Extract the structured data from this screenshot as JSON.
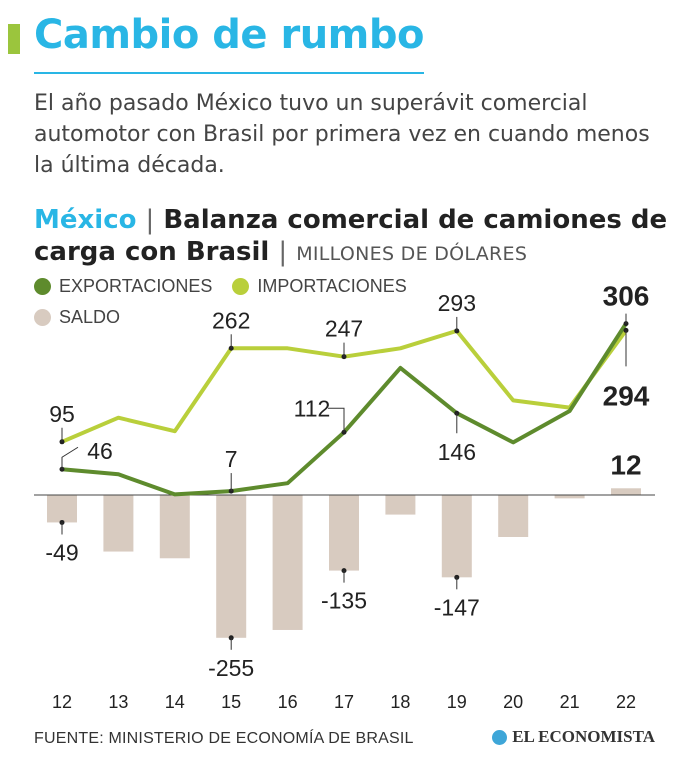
{
  "header": {
    "title": "Cambio de rumbo",
    "subtitle": "El año pasado México tuvo un superávit comercial automotor con Brasil por primera vez en cuando menos la última década."
  },
  "chart_header": {
    "country": "México",
    "separator": "|",
    "title": "Balanza comercial de camiones de carga con Brasil",
    "unit": "MILLONES DE DÓLARES"
  },
  "colors": {
    "exportaciones": "#5e8b2d",
    "importaciones": "#b9cf3b",
    "saldo": "#d8cbc0",
    "accent": "#29b6e5"
  },
  "chart_data": {
    "type": "line",
    "categories": [
      "12",
      "13",
      "14",
      "15",
      "16",
      "17",
      "18",
      "19",
      "20",
      "21",
      "22"
    ],
    "series": [
      {
        "name": "EXPORTACIONES",
        "type": "line",
        "values": [
          46,
          37,
          1,
          7,
          21,
          112,
          227,
          146,
          94,
          150,
          306
        ]
      },
      {
        "name": "IMPORTACIONES",
        "type": "line",
        "values": [
          95,
          138,
          114,
          262,
          262,
          247,
          262,
          293,
          169,
          156,
          294
        ]
      },
      {
        "name": "SALDO",
        "type": "bar",
        "values": [
          -49,
          -101,
          -113,
          -255,
          -241,
          -135,
          -35,
          -147,
          -75,
          -6,
          12
        ]
      }
    ],
    "labels": {
      "exportaciones": [
        {
          "i": 0,
          "text": "46"
        },
        {
          "i": 3,
          "text": "7"
        },
        {
          "i": 5,
          "text": "112"
        },
        {
          "i": 7,
          "text": "146"
        },
        {
          "i": 10,
          "text": "306"
        }
      ],
      "importaciones": [
        {
          "i": 0,
          "text": "95"
        },
        {
          "i": 3,
          "text": "262"
        },
        {
          "i": 5,
          "text": "247"
        },
        {
          "i": 7,
          "text": "293"
        },
        {
          "i": 10,
          "text": "294"
        }
      ],
      "saldo": [
        {
          "i": 0,
          "text": "-49"
        },
        {
          "i": 3,
          "text": "-255"
        },
        {
          "i": 5,
          "text": "-135"
        },
        {
          "i": 7,
          "text": "-147"
        },
        {
          "i": 10,
          "text": "12"
        }
      ]
    },
    "legend": [
      "EXPORTACIONES",
      "IMPORTACIONES",
      "SALDO"
    ],
    "ylim": [
      -255,
      306
    ]
  },
  "footer": {
    "source": "FUENTE: MINISTERIO DE ECONOMÍA DE BRASIL",
    "brand": "EL ECONOMISTA"
  }
}
